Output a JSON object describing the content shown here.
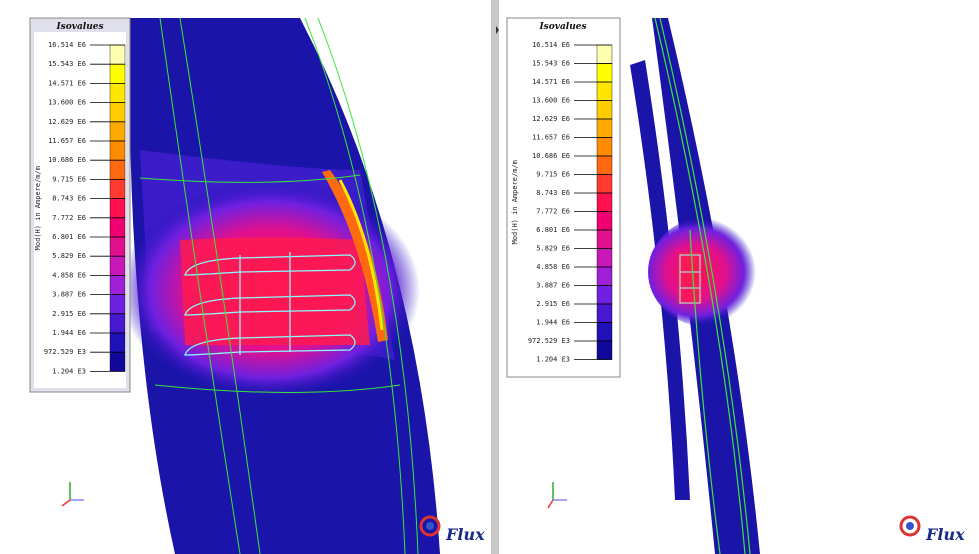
{
  "panels": [
    {
      "legend": {
        "title": "Isovalues",
        "quantity": "Mod(H) in Ampere/m/m",
        "levels": [
          "16.514 E6",
          "15.543 E6",
          "14.571 E6",
          "13.600 E6",
          "12.629 E6",
          "11.657 E6",
          "10.686 E6",
          "9.715 E6",
          "8.743 E6",
          "7.772 E6",
          "6.801 E6",
          "5.829 E6",
          "4.858 E6",
          "3.887 E6",
          "2.915 E6",
          "1.944 E6",
          "972.529 E3",
          "1.204 E3"
        ],
        "colors": [
          "#ffffb0",
          "#ffff00",
          "#ffe600",
          "#ffcc00",
          "#ffaa00",
          "#ff8c00",
          "#ff6a10",
          "#ff3a30",
          "#ff1050",
          "#f00070",
          "#e0108f",
          "#c818b8",
          "#a020d8",
          "#7020e0",
          "#4818d0",
          "#2010b8",
          "#100898"
        ]
      }
    },
    {
      "legend": {
        "title": "Isovalues",
        "quantity": "Mod(H) in Ampere/m/m",
        "levels": [
          "16.514 E6",
          "15.543 E6",
          "14.571 E6",
          "13.600 E6",
          "12.629 E6",
          "11.657 E6",
          "10.686 E6",
          "9.715 E6",
          "8.743 E6",
          "7.772 E6",
          "6.801 E6",
          "5.829 E6",
          "4.858 E6",
          "3.887 E6",
          "2.915 E6",
          "1.944 E6",
          "972.529 E3",
          "1.204 E3"
        ],
        "colors": [
          "#ffffb0",
          "#ffff00",
          "#ffe600",
          "#ffcc00",
          "#ffaa00",
          "#ff8c00",
          "#ff6a10",
          "#ff3a30",
          "#ff1050",
          "#f00070",
          "#e0108f",
          "#c818b8",
          "#a020d8",
          "#7020e0",
          "#4818d0",
          "#2010b8",
          "#100898"
        ]
      }
    }
  ],
  "logo": "Flux"
}
